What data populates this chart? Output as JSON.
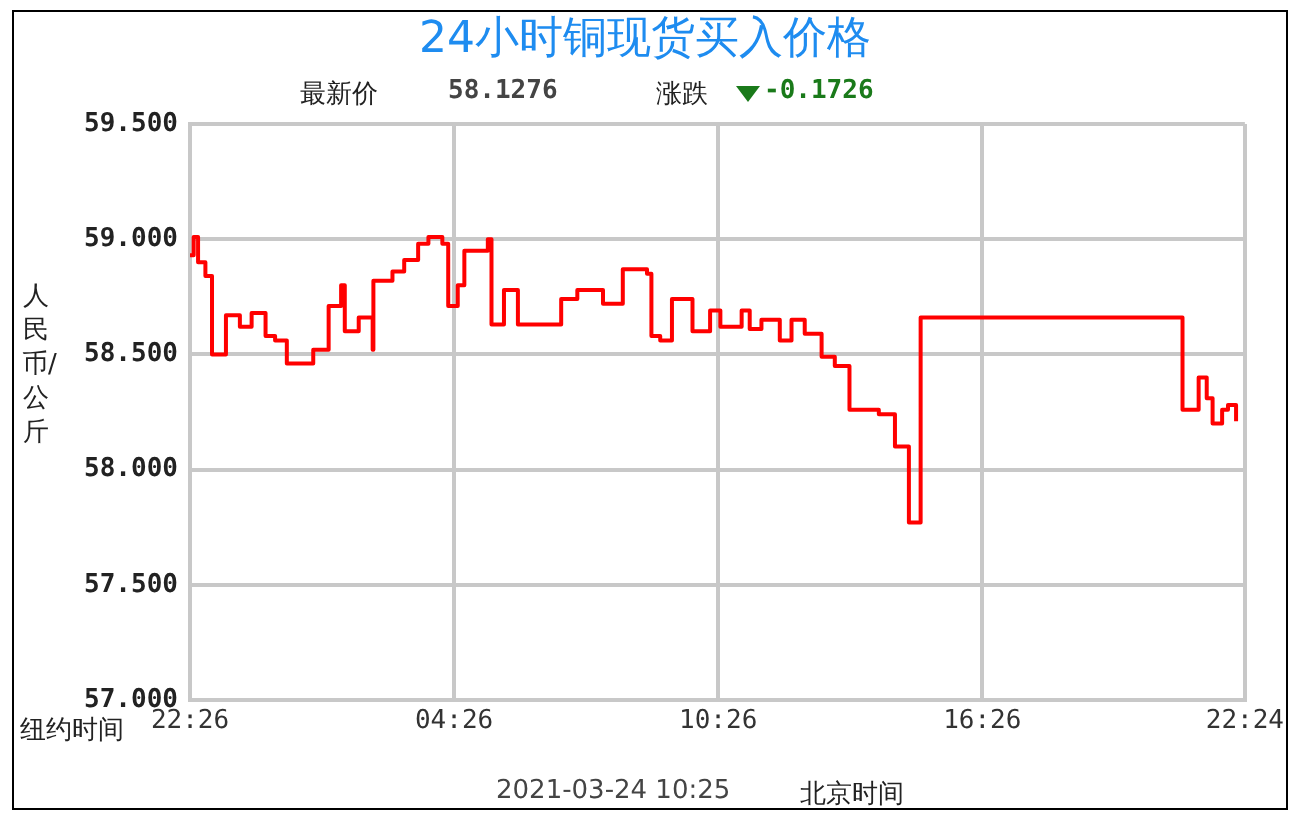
{
  "chart_data": {
    "type": "step",
    "title": "24小时铜现货买入价格",
    "ylabel": "人民币/公斤",
    "annotations": [
      "最新价",
      "58.1276",
      "涨跌",
      "-0.1726",
      "纽约时间",
      "2021-03-24 10:25",
      "北京时间"
    ],
    "xlim": [
      "2021-03-22T22:26",
      "2021-03-23T22:24"
    ],
    "xticks": [
      {
        "value": "2021-03-22T22:26",
        "label": "22:26"
      },
      {
        "value": "2021-03-23T04:26",
        "label": "04:26"
      },
      {
        "value": "2021-03-23T10:26",
        "label": "10:26"
      },
      {
        "value": "2021-03-23T16:26",
        "label": "16:26"
      },
      {
        "value": "2021-03-23T22:24",
        "label": "22:24"
      }
    ],
    "ylim": [
      57,
      59.5
    ],
    "yticks": [
      {
        "value": 57,
        "label": "57.000"
      },
      {
        "value": 57.5,
        "label": "57.500"
      },
      {
        "value": 58,
        "label": "58.000"
      },
      {
        "value": 58.5,
        "label": "58.500"
      },
      {
        "value": 59,
        "label": "59.000"
      },
      {
        "value": 59.5,
        "label": "59.500"
      }
    ],
    "grid": true,
    "legend": false,
    "marker": "none",
    "line_style": "solid",
    "x": [
      "2021-03-22T22:26",
      "2021-03-22T22:31",
      "2021-03-22T22:37",
      "2021-03-22T22:47",
      "2021-03-22T22:56",
      "2021-03-22T23:15",
      "2021-03-22T23:34",
      "2021-03-22T23:50",
      "2021-03-23T00:09",
      "2021-03-23T00:22",
      "2021-03-23T00:38",
      "2021-03-23T01:14",
      "2021-03-23T01:35",
      "2021-03-23T01:52",
      "2021-03-23T01:57",
      "2021-03-23T02:16",
      "2021-03-23T02:35",
      "2021-03-23T02:36",
      "2021-03-23T03:02",
      "2021-03-23T03:18",
      "2021-03-23T03:37",
      "2021-03-23T03:51",
      "2021-03-23T04:10",
      "2021-03-23T04:18",
      "2021-03-23T04:31",
      "2021-03-23T04:40",
      "2021-03-23T05:12",
      "2021-03-23T05:17",
      "2021-03-23T05:34",
      "2021-03-23T05:53",
      "2021-03-23T06:52",
      "2021-03-23T07:14",
      "2021-03-23T07:49",
      "2021-03-23T08:16",
      "2021-03-23T08:49",
      "2021-03-23T08:55",
      "2021-03-23T09:07",
      "2021-03-23T09:23",
      "2021-03-23T09:51",
      "2021-03-23T10:15",
      "2021-03-23T10:29",
      "2021-03-23T10:58",
      "2021-03-23T11:09",
      "2021-03-23T11:25",
      "2021-03-23T11:50",
      "2021-03-23T12:06",
      "2021-03-23T12:24",
      "2021-03-23T12:47",
      "2021-03-23T13:05",
      "2021-03-23T13:25",
      "2021-03-23T14:05",
      "2021-03-23T14:27",
      "2021-03-23T14:46",
      "2021-03-23T15:02",
      "2021-03-23T20:59",
      "2021-03-23T21:21",
      "2021-03-23T21:32",
      "2021-03-23T21:40",
      "2021-03-23T21:53",
      "2021-03-23T22:01",
      "2021-03-23T22:12"
    ],
    "series": [
      {
        "color": "#ff0000",
        "values": [
          58.93,
          59.01,
          58.9,
          58.84,
          58.5,
          58.67,
          58.62,
          58.68,
          58.58,
          58.56,
          58.46,
          58.52,
          58.71,
          58.8,
          58.6,
          58.66,
          58.52,
          58.82,
          58.86,
          58.91,
          58.98,
          59.01,
          58.98,
          58.71,
          58.8,
          58.95,
          59.0,
          58.63,
          58.78,
          58.63,
          58.74,
          58.78,
          58.72,
          58.87,
          58.85,
          58.58,
          58.56,
          58.74,
          58.6,
          58.69,
          58.62,
          58.69,
          58.61,
          58.65,
          58.56,
          58.65,
          58.59,
          58.49,
          58.45,
          58.26,
          58.24,
          58.1,
          57.77,
          58.66,
          58.26,
          58.4,
          58.31,
          58.2,
          58.26,
          58.28,
          58.21
        ]
      }
    ]
  }
}
